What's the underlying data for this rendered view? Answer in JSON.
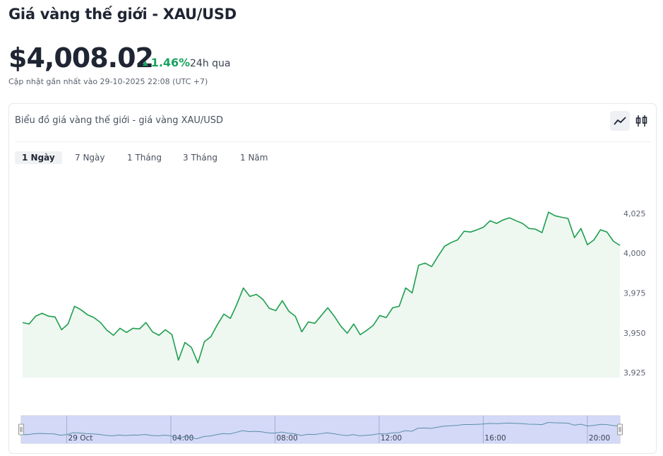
{
  "header": {
    "title": "Giá vàng thế giới - XAU/USD",
    "price": "$4,008.02",
    "change": "1.46%",
    "period": "24h qua",
    "updated": "Cập nhật gần nhất vào 29-10-2025 22:08 (UTC +7)"
  },
  "card": {
    "title": "Biểu đồ giá vàng thế giới - giá vàng XAU/USD",
    "tabs": [
      "1 Ngày",
      "7 Ngày",
      "1 Tháng",
      "3 Tháng",
      "1 Năm"
    ]
  },
  "chart_data": {
    "type": "line",
    "color": "#1e9e4f",
    "grid": false,
    "x": [
      -1.75,
      -1.5,
      -1.25,
      -1,
      -0.75,
      -0.5,
      -0.25,
      0,
      0.25,
      0.5,
      0.75,
      1,
      1.25,
      1.5,
      1.75,
      2,
      2.25,
      2.5,
      2.75,
      3,
      3.25,
      3.5,
      3.75,
      4,
      4.25,
      4.5,
      4.75,
      5,
      5.25,
      5.5,
      5.75,
      6,
      6.25,
      6.5,
      6.75,
      7,
      7.25,
      7.5,
      7.75,
      8,
      8.25,
      8.5,
      8.75,
      9,
      9.25,
      9.5,
      9.75,
      10,
      10.25,
      10.5,
      10.75,
      11,
      11.25,
      11.5,
      11.75,
      12,
      12.25,
      12.5,
      12.75,
      13,
      13.25,
      13.5,
      13.75,
      14,
      14.25,
      14.5,
      14.75,
      15,
      15.25,
      15.5,
      15.75,
      16,
      16.25,
      16.5,
      16.75,
      17,
      17.25,
      17.5,
      17.75,
      18,
      18.25,
      18.5,
      18.75,
      19,
      19.25,
      19.5,
      19.75,
      20,
      20.25,
      20.5,
      20.75,
      21,
      21.25
    ],
    "values": [
      3956.5,
      3955.6,
      3960.5,
      3962.3,
      3960.5,
      3960.0,
      3952.0,
      3955.6,
      3966.7,
      3964.5,
      3961.4,
      3959.6,
      3956.5,
      3951.6,
      3948.5,
      3952.9,
      3950.3,
      3952.9,
      3952.5,
      3956.5,
      3950.7,
      3948.5,
      3952.0,
      3948.9,
      3932.9,
      3944.0,
      3940.9,
      3931.2,
      3944.5,
      3947.6,
      3955.2,
      3961.8,
      3959.1,
      3968.0,
      3978.2,
      3972.9,
      3974.2,
      3971.1,
      3965.4,
      3964.0,
      3970.2,
      3963.6,
      3960.5,
      3950.7,
      3956.9,
      3956.0,
      3960.9,
      3965.8,
      3960.5,
      3954.3,
      3949.8,
      3955.6,
      3948.9,
      3951.6,
      3954.7,
      3960.9,
      3959.6,
      3965.8,
      3966.7,
      3978.2,
      3975.1,
      3992.5,
      3993.8,
      3991.6,
      3998.2,
      4004.4,
      4006.7,
      4008.4,
      4013.8,
      4013.3,
      4014.7,
      4016.4,
      4020.4,
      4018.7,
      4020.9,
      4022.2,
      4020.4,
      4018.7,
      4015.5,
      4015.1,
      4012.9,
      4025.8,
      4023.5,
      4022.6,
      4021.8,
      4009.8,
      4015.5,
      4005.3,
      4008.4,
      4014.7,
      4013.3,
      4007.5,
      4004.9
    ],
    "xlim": [
      -1.75,
      21.25
    ],
    "ylim": [
      3922,
      4040
    ],
    "yticks": [
      {
        "value": 4025,
        "label": "4,025"
      },
      {
        "value": 4000,
        "label": "4,000"
      },
      {
        "value": 3975,
        "label": "3,975"
      },
      {
        "value": 3950,
        "label": "3,950"
      },
      {
        "value": 3925,
        "label": "3,925"
      }
    ],
    "xticks": [
      {
        "value": 0,
        "label": "29 Oct"
      },
      {
        "value": 4,
        "label": "04:00"
      },
      {
        "value": 8,
        "label": "08:00"
      },
      {
        "value": 12,
        "label": "12:00"
      },
      {
        "value": 16,
        "label": "16:00"
      },
      {
        "value": 20,
        "label": "20:00"
      }
    ]
  }
}
